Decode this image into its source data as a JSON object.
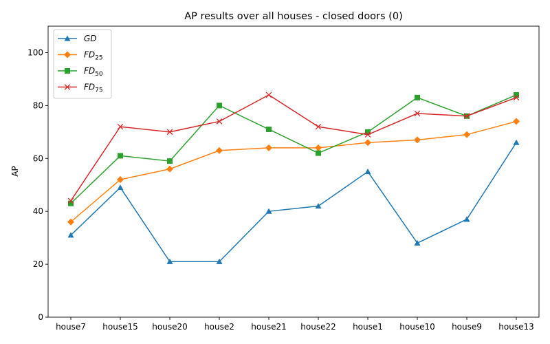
{
  "chart_data": {
    "type": "line",
    "title": "AP results over all houses - closed doors (0)",
    "xlabel": "",
    "ylabel": "AP",
    "categories": [
      "house7",
      "house15",
      "house20",
      "house2",
      "house21",
      "house22",
      "house1",
      "house10",
      "house9",
      "house13"
    ],
    "ylim": [
      0,
      110
    ],
    "yticks": [
      0,
      20,
      40,
      60,
      80,
      100
    ],
    "grid": false,
    "legend_position": "top-left",
    "series": [
      {
        "name": "GD",
        "name_main": "GD",
        "name_sub": "",
        "color": "#1f77b4",
        "marker": "triangle",
        "values": [
          31,
          49,
          21,
          21,
          40,
          42,
          55,
          28,
          37,
          66
        ]
      },
      {
        "name": "FD25",
        "name_main": "FD",
        "name_sub": "25",
        "color": "#ff7f0e",
        "marker": "diamond",
        "values": [
          36,
          52,
          56,
          63,
          64,
          64,
          66,
          67,
          69,
          74
        ]
      },
      {
        "name": "FD50",
        "name_main": "FD",
        "name_sub": "50",
        "color": "#2ca02c",
        "marker": "square",
        "values": [
          43,
          61,
          59,
          80,
          71,
          62,
          70,
          83,
          76,
          84
        ]
      },
      {
        "name": "FD75",
        "name_main": "FD",
        "name_sub": "75",
        "color": "#d62728",
        "marker": "x",
        "values": [
          44,
          72,
          70,
          74,
          84,
          72,
          69,
          77,
          76,
          83
        ]
      }
    ]
  }
}
